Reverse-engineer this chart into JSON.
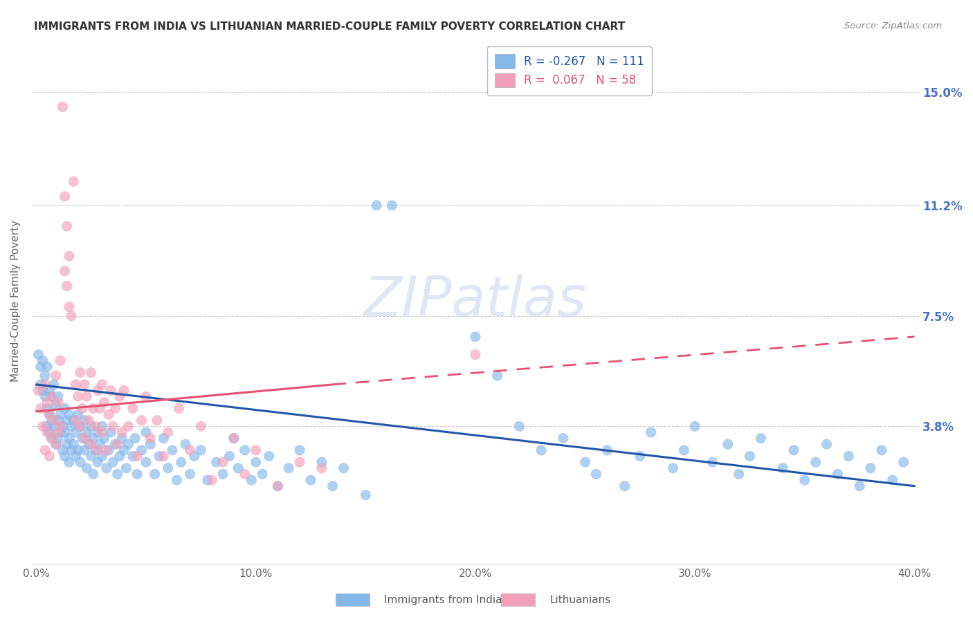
{
  "title": "IMMIGRANTS FROM INDIA VS LITHUANIAN MARRIED-COUPLE FAMILY POVERTY CORRELATION CHART",
  "source": "Source: ZipAtlas.com",
  "ylabel": "Married-Couple Family Poverty",
  "ytick_labels": [
    "15.0%",
    "11.2%",
    "7.5%",
    "3.8%"
  ],
  "ytick_values": [
    0.15,
    0.112,
    0.075,
    0.038
  ],
  "xlim": [
    -0.002,
    0.402
  ],
  "ylim": [
    -0.008,
    0.168
  ],
  "india_color": "#85B8EA",
  "lithuanian_color": "#F2A0B8",
  "india_line_color": "#2255AA",
  "lithuanian_line_color": "#E85070",
  "india_line": [
    [
      0.0,
      0.052
    ],
    [
      0.4,
      0.018
    ]
  ],
  "lith_line_solid": [
    [
      0.0,
      0.043
    ],
    [
      0.135,
      0.052
    ]
  ],
  "lith_line_dashed": [
    [
      0.135,
      0.052
    ],
    [
      0.4,
      0.068
    ]
  ],
  "india_scatter": [
    [
      0.001,
      0.062
    ],
    [
      0.002,
      0.058
    ],
    [
      0.002,
      0.052
    ],
    [
      0.003,
      0.06
    ],
    [
      0.003,
      0.05
    ],
    [
      0.004,
      0.055
    ],
    [
      0.004,
      0.048
    ],
    [
      0.005,
      0.058
    ],
    [
      0.005,
      0.044
    ],
    [
      0.005,
      0.038
    ],
    [
      0.006,
      0.05
    ],
    [
      0.006,
      0.042
    ],
    [
      0.006,
      0.036
    ],
    [
      0.007,
      0.048
    ],
    [
      0.007,
      0.04
    ],
    [
      0.007,
      0.034
    ],
    [
      0.008,
      0.052
    ],
    [
      0.008,
      0.038
    ],
    [
      0.009,
      0.045
    ],
    [
      0.009,
      0.032
    ],
    [
      0.01,
      0.048
    ],
    [
      0.01,
      0.04
    ],
    [
      0.01,
      0.034
    ],
    [
      0.011,
      0.042
    ],
    [
      0.011,
      0.036
    ],
    [
      0.012,
      0.038
    ],
    [
      0.012,
      0.03
    ],
    [
      0.013,
      0.044
    ],
    [
      0.013,
      0.036
    ],
    [
      0.013,
      0.028
    ],
    [
      0.014,
      0.04
    ],
    [
      0.014,
      0.032
    ],
    [
      0.015,
      0.042
    ],
    [
      0.015,
      0.034
    ],
    [
      0.015,
      0.026
    ],
    [
      0.016,
      0.038
    ],
    [
      0.016,
      0.03
    ],
    [
      0.017,
      0.04
    ],
    [
      0.017,
      0.032
    ],
    [
      0.018,
      0.036
    ],
    [
      0.018,
      0.028
    ],
    [
      0.019,
      0.042
    ],
    [
      0.019,
      0.03
    ],
    [
      0.02,
      0.038
    ],
    [
      0.02,
      0.026
    ],
    [
      0.021,
      0.034
    ],
    [
      0.022,
      0.04
    ],
    [
      0.022,
      0.03
    ],
    [
      0.023,
      0.036
    ],
    [
      0.023,
      0.024
    ],
    [
      0.024,
      0.032
    ],
    [
      0.025,
      0.038
    ],
    [
      0.025,
      0.028
    ],
    [
      0.026,
      0.034
    ],
    [
      0.026,
      0.022
    ],
    [
      0.027,
      0.03
    ],
    [
      0.028,
      0.036
    ],
    [
      0.028,
      0.026
    ],
    [
      0.029,
      0.032
    ],
    [
      0.03,
      0.038
    ],
    [
      0.03,
      0.028
    ],
    [
      0.031,
      0.034
    ],
    [
      0.032,
      0.024
    ],
    [
      0.033,
      0.03
    ],
    [
      0.034,
      0.036
    ],
    [
      0.035,
      0.026
    ],
    [
      0.036,
      0.032
    ],
    [
      0.037,
      0.022
    ],
    [
      0.038,
      0.028
    ],
    [
      0.039,
      0.034
    ],
    [
      0.04,
      0.03
    ],
    [
      0.041,
      0.024
    ],
    [
      0.042,
      0.032
    ],
    [
      0.044,
      0.028
    ],
    [
      0.045,
      0.034
    ],
    [
      0.046,
      0.022
    ],
    [
      0.048,
      0.03
    ],
    [
      0.05,
      0.036
    ],
    [
      0.05,
      0.026
    ],
    [
      0.052,
      0.032
    ],
    [
      0.054,
      0.022
    ],
    [
      0.056,
      0.028
    ],
    [
      0.058,
      0.034
    ],
    [
      0.06,
      0.024
    ],
    [
      0.062,
      0.03
    ],
    [
      0.064,
      0.02
    ],
    [
      0.066,
      0.026
    ],
    [
      0.068,
      0.032
    ],
    [
      0.07,
      0.022
    ],
    [
      0.072,
      0.028
    ],
    [
      0.075,
      0.03
    ],
    [
      0.078,
      0.02
    ],
    [
      0.082,
      0.026
    ],
    [
      0.085,
      0.022
    ],
    [
      0.088,
      0.028
    ],
    [
      0.09,
      0.034
    ],
    [
      0.092,
      0.024
    ],
    [
      0.095,
      0.03
    ],
    [
      0.098,
      0.02
    ],
    [
      0.1,
      0.026
    ],
    [
      0.103,
      0.022
    ],
    [
      0.106,
      0.028
    ],
    [
      0.11,
      0.018
    ],
    [
      0.115,
      0.024
    ],
    [
      0.12,
      0.03
    ],
    [
      0.125,
      0.02
    ],
    [
      0.13,
      0.026
    ],
    [
      0.135,
      0.018
    ],
    [
      0.14,
      0.024
    ],
    [
      0.15,
      0.015
    ],
    [
      0.155,
      0.112
    ],
    [
      0.162,
      0.112
    ],
    [
      0.2,
      0.068
    ],
    [
      0.21,
      0.055
    ],
    [
      0.22,
      0.038
    ],
    [
      0.23,
      0.03
    ],
    [
      0.24,
      0.034
    ],
    [
      0.25,
      0.026
    ],
    [
      0.255,
      0.022
    ],
    [
      0.26,
      0.03
    ],
    [
      0.268,
      0.018
    ],
    [
      0.275,
      0.028
    ],
    [
      0.28,
      0.036
    ],
    [
      0.29,
      0.024
    ],
    [
      0.295,
      0.03
    ],
    [
      0.3,
      0.038
    ],
    [
      0.308,
      0.026
    ],
    [
      0.315,
      0.032
    ],
    [
      0.32,
      0.022
    ],
    [
      0.325,
      0.028
    ],
    [
      0.33,
      0.034
    ],
    [
      0.34,
      0.024
    ],
    [
      0.345,
      0.03
    ],
    [
      0.35,
      0.02
    ],
    [
      0.355,
      0.026
    ],
    [
      0.36,
      0.032
    ],
    [
      0.365,
      0.022
    ],
    [
      0.37,
      0.028
    ],
    [
      0.375,
      0.018
    ],
    [
      0.38,
      0.024
    ],
    [
      0.385,
      0.03
    ],
    [
      0.39,
      0.02
    ],
    [
      0.395,
      0.026
    ]
  ],
  "lithuanian_scatter": [
    [
      0.001,
      0.05
    ],
    [
      0.002,
      0.044
    ],
    [
      0.003,
      0.038
    ],
    [
      0.004,
      0.052
    ],
    [
      0.004,
      0.03
    ],
    [
      0.005,
      0.046
    ],
    [
      0.005,
      0.036
    ],
    [
      0.006,
      0.042
    ],
    [
      0.006,
      0.028
    ],
    [
      0.007,
      0.048
    ],
    [
      0.007,
      0.034
    ],
    [
      0.008,
      0.04
    ],
    [
      0.009,
      0.055
    ],
    [
      0.009,
      0.032
    ],
    [
      0.01,
      0.046
    ],
    [
      0.01,
      0.036
    ],
    [
      0.011,
      0.06
    ],
    [
      0.011,
      0.038
    ],
    [
      0.012,
      0.145
    ],
    [
      0.013,
      0.115
    ],
    [
      0.013,
      0.09
    ],
    [
      0.014,
      0.105
    ],
    [
      0.014,
      0.085
    ],
    [
      0.015,
      0.095
    ],
    [
      0.015,
      0.078
    ],
    [
      0.016,
      0.075
    ],
    [
      0.017,
      0.12
    ],
    [
      0.018,
      0.052
    ],
    [
      0.018,
      0.04
    ],
    [
      0.019,
      0.048
    ],
    [
      0.02,
      0.056
    ],
    [
      0.02,
      0.038
    ],
    [
      0.021,
      0.044
    ],
    [
      0.022,
      0.052
    ],
    [
      0.022,
      0.034
    ],
    [
      0.023,
      0.048
    ],
    [
      0.024,
      0.04
    ],
    [
      0.025,
      0.056
    ],
    [
      0.025,
      0.032
    ],
    [
      0.026,
      0.044
    ],
    [
      0.027,
      0.038
    ],
    [
      0.028,
      0.05
    ],
    [
      0.028,
      0.03
    ],
    [
      0.029,
      0.044
    ],
    [
      0.03,
      0.052
    ],
    [
      0.03,
      0.036
    ],
    [
      0.031,
      0.046
    ],
    [
      0.032,
      0.03
    ],
    [
      0.033,
      0.042
    ],
    [
      0.034,
      0.05
    ],
    [
      0.035,
      0.038
    ],
    [
      0.036,
      0.044
    ],
    [
      0.037,
      0.032
    ],
    [
      0.038,
      0.048
    ],
    [
      0.039,
      0.036
    ],
    [
      0.04,
      0.05
    ],
    [
      0.042,
      0.038
    ],
    [
      0.044,
      0.044
    ],
    [
      0.046,
      0.028
    ],
    [
      0.048,
      0.04
    ],
    [
      0.05,
      0.048
    ],
    [
      0.052,
      0.034
    ],
    [
      0.055,
      0.04
    ],
    [
      0.058,
      0.028
    ],
    [
      0.06,
      0.036
    ],
    [
      0.065,
      0.044
    ],
    [
      0.07,
      0.03
    ],
    [
      0.075,
      0.038
    ],
    [
      0.08,
      0.02
    ],
    [
      0.085,
      0.026
    ],
    [
      0.09,
      0.034
    ],
    [
      0.095,
      0.022
    ],
    [
      0.1,
      0.03
    ],
    [
      0.11,
      0.018
    ],
    [
      0.12,
      0.026
    ],
    [
      0.13,
      0.024
    ],
    [
      0.2,
      0.062
    ]
  ]
}
